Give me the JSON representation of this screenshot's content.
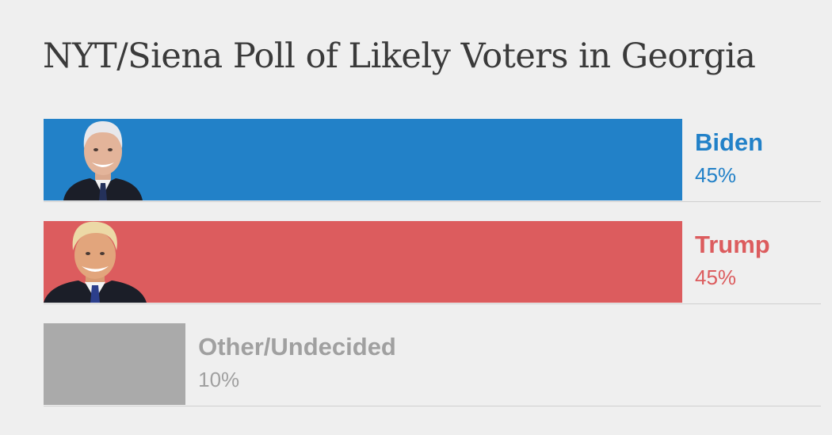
{
  "title": "NYT/Siena Poll of Likely Voters in Georgia",
  "chart_data": {
    "type": "bar",
    "orientation": "horizontal",
    "title": "NYT/Siena Poll of Likely Voters in Georgia",
    "categories": [
      "Biden",
      "Trump",
      "Other/Undecided"
    ],
    "values": [
      45,
      45,
      10
    ],
    "value_labels": [
      "45%",
      "45%",
      "10%"
    ],
    "unit": "%",
    "colors": [
      "#2281c8",
      "#dc5c5e",
      "#aaaaaa"
    ],
    "label_colors": [
      "#2281c8",
      "#dc5c5e",
      "#a0a0a0"
    ],
    "portraits": [
      "biden-portrait",
      "trump-portrait",
      null
    ],
    "xlim": [
      0,
      50
    ],
    "grid": false,
    "legend": "none"
  }
}
